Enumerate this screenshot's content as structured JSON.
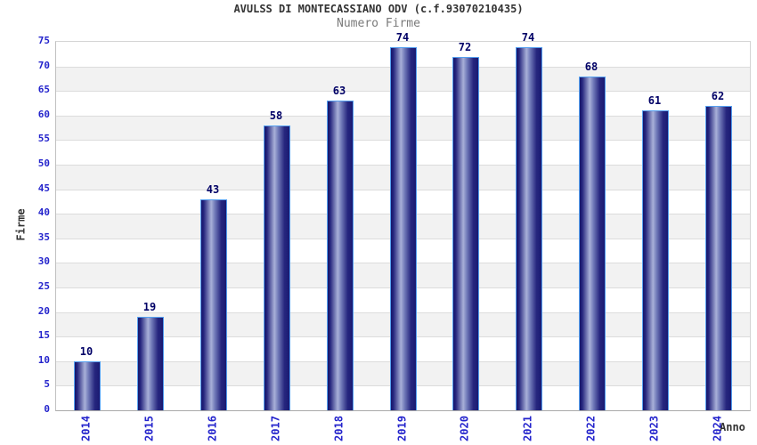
{
  "chart_data": {
    "type": "bar",
    "title": "AVULSS DI MONTECASSIANO ODV (c.f.93070210435)",
    "subtitle": "Numero Firme",
    "xlabel": "Anno",
    "ylabel": "Firme",
    "categories": [
      "2014",
      "2015",
      "2016",
      "2017",
      "2018",
      "2019",
      "2020",
      "2021",
      "2022",
      "2023",
      "2024"
    ],
    "values": [
      10,
      19,
      43,
      58,
      63,
      74,
      72,
      74,
      68,
      61,
      62
    ],
    "ylim": [
      0,
      75
    ],
    "ytick_step": 5,
    "yticks": [
      0,
      5,
      10,
      15,
      20,
      25,
      30,
      35,
      40,
      45,
      50,
      55,
      60,
      65,
      70,
      75
    ],
    "legend": "none",
    "grid": "horizontal gridlines every 5 units with alternating white/gray bands",
    "colors": {
      "bar_dark": "#1a1a72",
      "bar_light": "#a8b0d8",
      "bar_border": "#55a0f0",
      "tick_label": "#2424cc",
      "value_label": "#000066",
      "title": "#333333",
      "subtitle": "#7a7a7a",
      "band_gray": "#f2f2f2",
      "gridline": "#dcdcdc",
      "background": "#ffffff"
    }
  }
}
